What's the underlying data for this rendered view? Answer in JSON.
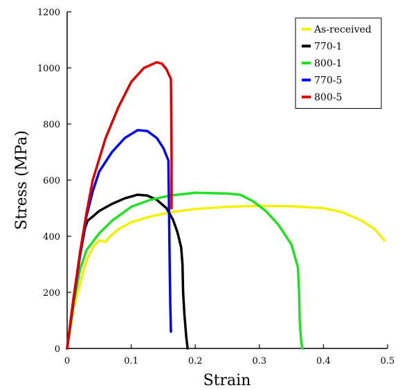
{
  "chart_data": {
    "type": "line",
    "title": "",
    "xlabel": "Strain",
    "ylabel": "Stress (MPa)",
    "xlim": [
      0,
      0.5
    ],
    "ylim": [
      0,
      1200
    ],
    "xticks": [
      0,
      0.1,
      0.2,
      0.3,
      0.4,
      0.5
    ],
    "xtick_labels": [
      "0",
      "0.1",
      "0.2",
      "0.3",
      "0.4",
      "0.5"
    ],
    "yticks": [
      0,
      200,
      400,
      600,
      800,
      1000,
      1200
    ],
    "ytick_labels": [
      "0",
      "200",
      "400",
      "600",
      "800",
      "1000",
      "1200"
    ],
    "grid": false,
    "legend_position": "top-right",
    "series": [
      {
        "name": "As-received",
        "color": "#f2f200",
        "points": [
          [
            0,
            0
          ],
          [
            0.01,
            140
          ],
          [
            0.02,
            230
          ],
          [
            0.03,
            310
          ],
          [
            0.04,
            360
          ],
          [
            0.05,
            385
          ],
          [
            0.06,
            380
          ],
          [
            0.065,
            395
          ],
          [
            0.08,
            425
          ],
          [
            0.1,
            450
          ],
          [
            0.13,
            470
          ],
          [
            0.16,
            485
          ],
          [
            0.2,
            497
          ],
          [
            0.25,
            505
          ],
          [
            0.3,
            508
          ],
          [
            0.35,
            507
          ],
          [
            0.4,
            500
          ],
          [
            0.43,
            485
          ],
          [
            0.46,
            455
          ],
          [
            0.48,
            425
          ],
          [
            0.495,
            385
          ]
        ]
      },
      {
        "name": "770-1",
        "color": "#000000",
        "points": [
          [
            0,
            0
          ],
          [
            0.01,
            180
          ],
          [
            0.02,
            330
          ],
          [
            0.028,
            430
          ],
          [
            0.032,
            455
          ],
          [
            0.04,
            470
          ],
          [
            0.05,
            490
          ],
          [
            0.07,
            515
          ],
          [
            0.09,
            535
          ],
          [
            0.11,
            548
          ],
          [
            0.125,
            545
          ],
          [
            0.14,
            530
          ],
          [
            0.155,
            500
          ],
          [
            0.165,
            460
          ],
          [
            0.172,
            415
          ],
          [
            0.178,
            360
          ],
          [
            0.18,
            300
          ],
          [
            0.181,
            200
          ],
          [
            0.183,
            120
          ],
          [
            0.186,
            40
          ],
          [
            0.188,
            0
          ]
        ]
      },
      {
        "name": "800-1",
        "color": "#22e022",
        "points": [
          [
            0,
            0
          ],
          [
            0.01,
            160
          ],
          [
            0.02,
            280
          ],
          [
            0.03,
            350
          ],
          [
            0.05,
            410
          ],
          [
            0.07,
            455
          ],
          [
            0.1,
            505
          ],
          [
            0.13,
            530
          ],
          [
            0.16,
            545
          ],
          [
            0.2,
            555
          ],
          [
            0.25,
            552
          ],
          [
            0.27,
            548
          ],
          [
            0.29,
            525
          ],
          [
            0.31,
            490
          ],
          [
            0.33,
            440
          ],
          [
            0.35,
            370
          ],
          [
            0.36,
            290
          ],
          [
            0.362,
            200
          ],
          [
            0.363,
            100
          ],
          [
            0.365,
            30
          ],
          [
            0.367,
            0
          ]
        ]
      },
      {
        "name": "770-5",
        "color": "#0000ff",
        "points": [
          [
            0,
            0
          ],
          [
            0.01,
            170
          ],
          [
            0.02,
            330
          ],
          [
            0.03,
            470
          ],
          [
            0.04,
            560
          ],
          [
            0.05,
            630
          ],
          [
            0.07,
            700
          ],
          [
            0.09,
            750
          ],
          [
            0.11,
            778
          ],
          [
            0.125,
            775
          ],
          [
            0.14,
            750
          ],
          [
            0.15,
            715
          ],
          [
            0.158,
            670
          ],
          [
            0.159,
            500
          ],
          [
            0.16,
            300
          ],
          [
            0.161,
            150
          ],
          [
            0.162,
            60
          ]
        ]
      },
      {
        "name": "800-5",
        "color": "#e00000",
        "points": [
          [
            0,
            0
          ],
          [
            0.01,
            180
          ],
          [
            0.02,
            340
          ],
          [
            0.03,
            480
          ],
          [
            0.04,
            600
          ],
          [
            0.06,
            750
          ],
          [
            0.08,
            860
          ],
          [
            0.1,
            950
          ],
          [
            0.12,
            1000
          ],
          [
            0.14,
            1020
          ],
          [
            0.148,
            1015
          ],
          [
            0.155,
            995
          ],
          [
            0.162,
            960
          ],
          [
            0.163,
            700
          ],
          [
            0.163,
            500
          ]
        ]
      }
    ]
  }
}
